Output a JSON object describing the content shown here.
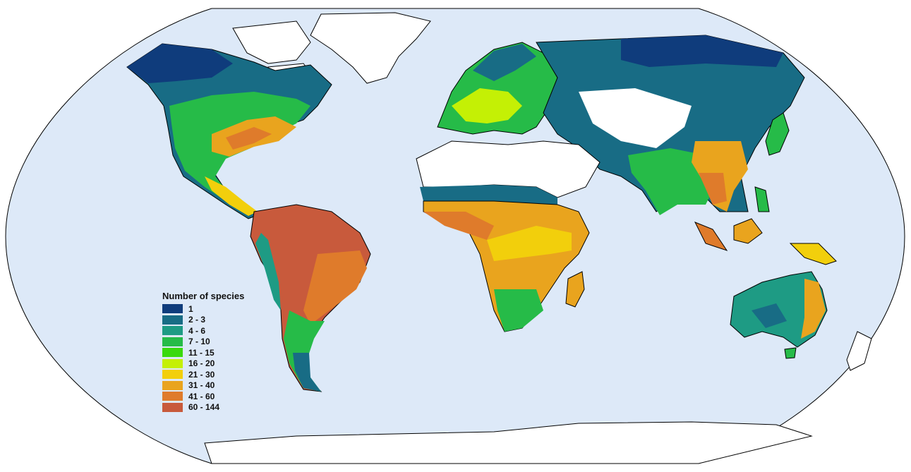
{
  "legend": {
    "title": "Number of species",
    "classes": [
      {
        "label": "1",
        "color": "#0f3c7c"
      },
      {
        "label": "2 - 3",
        "color": "#186c85"
      },
      {
        "label": "4 - 6",
        "color": "#1e9b84"
      },
      {
        "label": "7 - 10",
        "color": "#26bb48"
      },
      {
        "label": "11 - 15",
        "color": "#3ad90d"
      },
      {
        "label": "16 - 20",
        "color": "#c4f005"
      },
      {
        "label": "21 - 30",
        "color": "#f2cf0c"
      },
      {
        "label": "31 - 40",
        "color": "#e9a41e"
      },
      {
        "label": "41 - 60",
        "color": "#df7b2b"
      },
      {
        "label": "60 - 144",
        "color": "#c85a3c"
      }
    ]
  },
  "colors": {
    "ocean": "#dde9f8",
    "no_data_land": "#ffffff",
    "coastline": "#000000",
    "borders": "#9a9a9a"
  }
}
